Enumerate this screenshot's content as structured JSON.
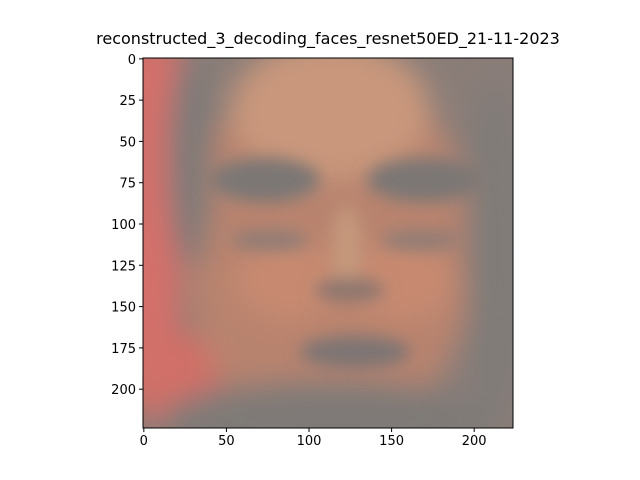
{
  "chart_data": {
    "type": "image",
    "title": "reconstructed_3_decoding_faces_resnet50ED_21-11-2023",
    "xlim": [
      -0.5,
      223.5
    ],
    "ylim": [
      223.5,
      -0.5
    ],
    "xticks": [
      0,
      50,
      100,
      150,
      200
    ],
    "yticks": [
      0,
      25,
      50,
      75,
      100,
      125,
      150,
      175,
      200
    ]
  }
}
